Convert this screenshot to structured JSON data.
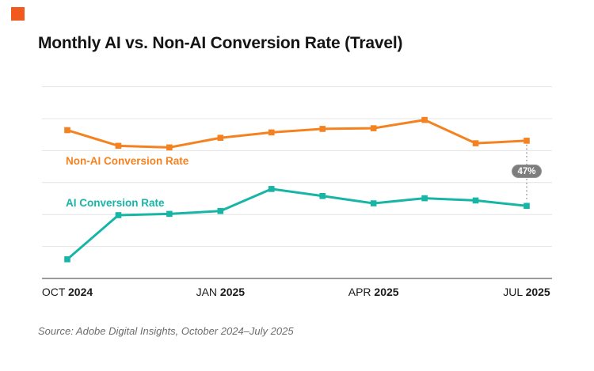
{
  "brand": {
    "accent_color": "#F2591E"
  },
  "header": {
    "title": "Monthly AI vs. Non-AI Conversion Rate (Travel)"
  },
  "chart_data": {
    "type": "line",
    "title": "Monthly AI vs. Non-AI Conversion Rate (Travel)",
    "x": [
      "Oct 2024",
      "Nov 2024",
      "Dec 2024",
      "Jan 2025",
      "Feb 2025",
      "Mar 2025",
      "Apr 2025",
      "May 2025",
      "Jun 2025",
      "Jul 2025"
    ],
    "x_tick_labels": [
      {
        "month": "OCT",
        "year": "2024",
        "index": 0
      },
      {
        "month": "JAN",
        "year": "2025",
        "index": 3
      },
      {
        "month": "APR",
        "year": "2025",
        "index": 6
      },
      {
        "month": "JUL",
        "year": "2025",
        "index": 9
      }
    ],
    "xlabel": "",
    "ylabel": "",
    "y_axis_tick_labels_visible": false,
    "ylim": [
      0,
      6
    ],
    "gridlines_y": [
      1,
      2,
      3,
      4,
      5,
      6
    ],
    "grid": "horizontal-only",
    "series": [
      {
        "name": "Non-AI Conversion Rate",
        "color": "#F58220",
        "marker": "square",
        "values": [
          4.64,
          4.15,
          4.1,
          4.4,
          4.57,
          4.68,
          4.7,
          4.96,
          4.23,
          4.31
        ]
      },
      {
        "name": "AI Conversion Rate",
        "color": "#17B5A6",
        "marker": "square",
        "values": [
          0.6,
          1.98,
          2.02,
          2.11,
          2.8,
          2.58,
          2.35,
          2.51,
          2.44,
          2.27
        ]
      }
    ],
    "legend_position": "inline-left-above-each-line",
    "annotation": {
      "label": "47%",
      "at_index": 9,
      "style": "gray rounded badge on dotted vertical connector between the two series at the last point"
    }
  },
  "footer": {
    "source": "Source: Adobe Digital Insights, October 2024–July 2025"
  }
}
